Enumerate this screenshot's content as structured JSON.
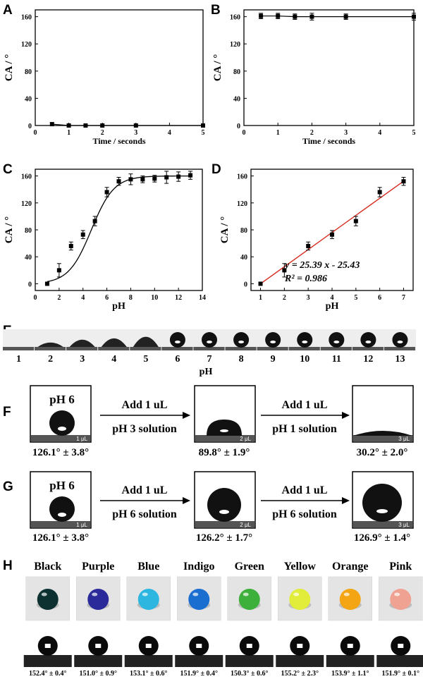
{
  "panel_letters": {
    "a": "A",
    "b": "B",
    "c": "C",
    "d": "D",
    "e": "E",
    "f": "F",
    "g": "G",
    "h": "H"
  },
  "chart_data": [
    {
      "id": "A",
      "type": "line",
      "xlabel": "Time / seconds",
      "ylabel": "CA / °",
      "xlim": [
        0,
        5
      ],
      "ylim": [
        0,
        170
      ],
      "xticks": [
        0,
        1,
        2,
        3,
        4,
        5
      ],
      "yticks": [
        0,
        40,
        80,
        120,
        160
      ],
      "series": [
        {
          "x": [
            0.5,
            1,
            1.5,
            2,
            3,
            5
          ],
          "y": [
            2,
            0,
            0,
            0,
            0,
            0
          ],
          "err": [
            0,
            0,
            0,
            0,
            0,
            0
          ]
        }
      ]
    },
    {
      "id": "B",
      "type": "line",
      "xlabel": "Time / seconds",
      "ylabel": "CA / °",
      "xlim": [
        0,
        5
      ],
      "ylim": [
        0,
        170
      ],
      "xticks": [
        0,
        1,
        2,
        3,
        4,
        5
      ],
      "yticks": [
        0,
        40,
        80,
        120,
        160
      ],
      "series": [
        {
          "x": [
            0.5,
            1,
            1.5,
            2,
            3,
            5
          ],
          "y": [
            161,
            161,
            160,
            160,
            160,
            160
          ],
          "err": [
            4,
            4,
            4,
            5,
            4,
            5
          ]
        }
      ]
    },
    {
      "id": "C",
      "type": "scatter",
      "xlabel": "pH",
      "ylabel": "CA / °",
      "xlim": [
        0,
        14
      ],
      "ylim": [
        -10,
        170
      ],
      "xticks": [
        0,
        2,
        4,
        6,
        8,
        10,
        12,
        14
      ],
      "yticks": [
        0,
        40,
        80,
        120,
        160
      ],
      "series": [
        {
          "x": [
            1,
            2,
            3,
            4,
            5,
            6,
            7,
            8,
            9,
            10,
            11,
            12,
            13
          ],
          "y": [
            0,
            20,
            56,
            73,
            93,
            136,
            152,
            155,
            155,
            156,
            158,
            159,
            161
          ],
          "err": [
            0,
            10,
            6,
            6,
            7,
            7,
            6,
            8,
            5,
            5,
            9,
            7,
            6
          ],
          "fit": "sigmoid"
        }
      ]
    },
    {
      "id": "D",
      "type": "scatter",
      "xlabel": "pH",
      "ylabel": "CA / °",
      "xlim": [
        0.6,
        7.4
      ],
      "ylim": [
        -10,
        170
      ],
      "xticks": [
        1,
        2,
        3,
        4,
        5,
        6,
        7
      ],
      "yticks": [
        0,
        40,
        80,
        120,
        160
      ],
      "annotation": {
        "line1": "y = 25.39 x - 25.43",
        "line2": "R² = 0.986"
      },
      "fit_color": "#d62a1e",
      "series": [
        {
          "x": [
            1,
            2,
            3,
            4,
            5,
            6,
            7
          ],
          "y": [
            0,
            20,
            56,
            73,
            93,
            136,
            152
          ],
          "err": [
            0,
            10,
            6,
            6,
            7,
            7,
            6
          ]
        }
      ]
    }
  ],
  "panel_e": {
    "labels": [
      "1",
      "2",
      "3",
      "4",
      "5",
      "6",
      "7",
      "8",
      "9",
      "10",
      "11",
      "12",
      "13"
    ],
    "xlabel": "pH"
  },
  "panel_f": {
    "start_label": "pH 6",
    "vol1": "1 μL",
    "vol2": "2 μL",
    "vol3": "3 μL",
    "arrow1_top": "Add 1 uL",
    "arrow1_bottom": "pH 3 solution",
    "arrow2_top": "Add 1 uL",
    "arrow2_bottom": "pH 1 solution",
    "angle1": "126.1° ± 3.8°",
    "angle2": "89.8° ± 1.9°",
    "angle3": "30.2° ± 2.0°"
  },
  "panel_g": {
    "start_label": "pH 6",
    "vol1": "1 μL",
    "vol2": "2 μL",
    "vol3": "3 μL",
    "arrow1_top": "Add 1 uL",
    "arrow1_bottom": "pH 6 solution",
    "arrow2_top": "Add 1 uL",
    "arrow2_bottom": "pH 6 solution",
    "angle1": "126.1° ± 3.8°",
    "angle2": "126.2° ± 1.7°",
    "angle3": "126.9° ± 1.4°"
  },
  "panel_h": {
    "drops": [
      {
        "name": "Black",
        "color": "#0c3130",
        "angle": "152.4° ± 0.4°"
      },
      {
        "name": "Purple",
        "color": "#2a2a9a",
        "angle": "151.0° ± 0.9°"
      },
      {
        "name": "Blue",
        "color": "#2cb6e0",
        "angle": "153.1° ± 0.6°"
      },
      {
        "name": "Indigo",
        "color": "#1a6ed0",
        "angle": "151.9° ± 0.4°"
      },
      {
        "name": "Green",
        "color": "#3cb03a",
        "angle": "150.3° ± 0.6°"
      },
      {
        "name": "Yellow",
        "color": "#e2ec3a",
        "angle": "155.2° ± 2.3°"
      },
      {
        "name": "Orange",
        "color": "#f3a514",
        "angle": "153.9° ± 1.1°"
      },
      {
        "name": "Pink",
        "color": "#f0a292",
        "angle": "151.9° ± 0.1°"
      }
    ]
  }
}
